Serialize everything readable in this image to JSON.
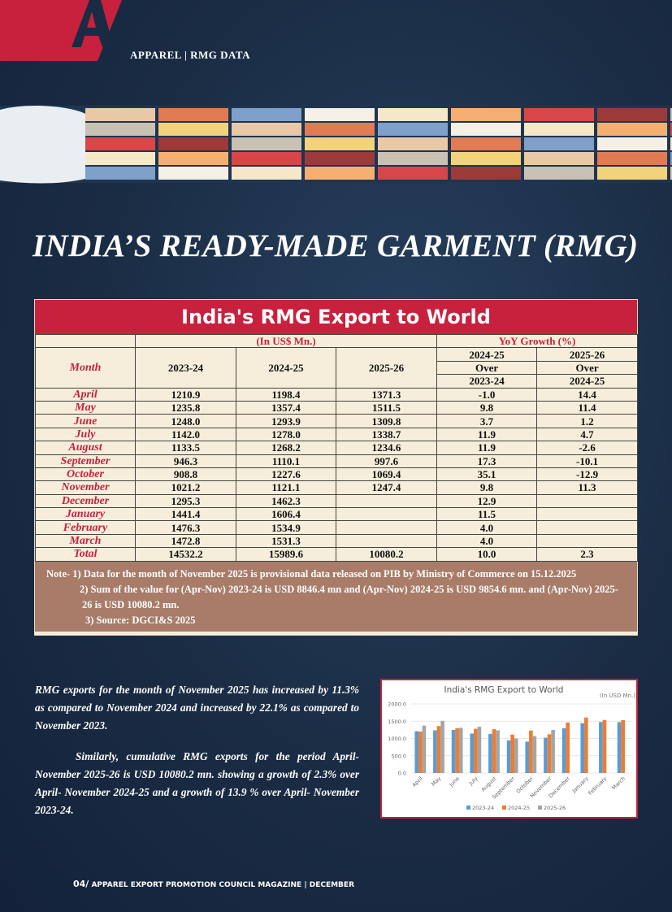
{
  "header": {
    "section": "APPAREL | RMG DATA"
  },
  "title": "INDIA’S READY-MADE GARMENT (RMG)",
  "table": {
    "title": "India's RMG Export to World",
    "unit_header": "(In US$ Mn.)",
    "growth_header": "YoY Growth (%)",
    "columns": [
      "Month",
      "2023-24",
      "2024-25",
      "2025-26"
    ],
    "growth_columns": [
      [
        "2024-25",
        "Over",
        "2023-24"
      ],
      [
        "2025-26",
        "Over",
        "2024-25"
      ]
    ],
    "rows": [
      [
        "April",
        "1210.9",
        "1198.4",
        "1371.3",
        "-1.0",
        "14.4"
      ],
      [
        "May",
        "1235.8",
        "1357.4",
        "1511.5",
        "9.8",
        "11.4"
      ],
      [
        "June",
        "1248.0",
        "1293.9",
        "1309.8",
        "3.7",
        "1.2"
      ],
      [
        "July",
        "1142.0",
        "1278.0",
        "1338.7",
        "11.9",
        "4.7"
      ],
      [
        "August",
        "1133.5",
        "1268.2",
        "1234.6",
        "11.9",
        "-2.6"
      ],
      [
        "September",
        "946.3",
        "1110.1",
        "997.6",
        "17.3",
        "-10.1"
      ],
      [
        "October",
        "908.8",
        "1227.6",
        "1069.4",
        "35.1",
        "-12.9"
      ],
      [
        "November",
        "1021.2",
        "1121.1",
        "1247.4",
        "9.8",
        "11.3"
      ],
      [
        "December",
        "1295.3",
        "1462.3",
        null,
        "12.9",
        null
      ],
      [
        "January",
        "1441.4",
        "1606.4",
        null,
        "11.5",
        null
      ],
      [
        "February",
        "1476.3",
        "1534.9",
        null,
        "4.0",
        null
      ],
      [
        "March",
        "1472.8",
        "1531.3",
        null,
        "4.0",
        null
      ],
      [
        "Total",
        "14532.2",
        "15989.6",
        "10080.2",
        "10.0",
        "2.3"
      ]
    ],
    "notes": [
      "Note- 1) Data for the month of November 2025 is provisional data released on PIB by Ministry of Commerce on 15.12.2025",
      "2) Sum of the value for (Apr-Nov) 2023-24 is USD 8846.4 mn and (Apr-Nov) 2024-25 is USD 9854.6 mn. and (Apr-Nov) 2025-26 is USD 10080.2 mn.",
      "3) Source: DGCI&S 2025"
    ]
  },
  "paragraphs": [
    "RMG exports for the month of November 2025 has increased by 11.3% as compared to November 2024 and increased by 22.1% as compared to November 2023.",
    "Similarly, cumulative RMG exports for the period April- November 2025-26 is USD 10080.2 mn. showing a growth of 2.3% over April- November 2024-25 and a growth of 13.9 % over April- November 2023-24."
  ],
  "chart_data": {
    "type": "bar",
    "title": "India's RMG Export to World",
    "annotation": "(In USD Mn.)",
    "categories": [
      "April",
      "May",
      "June",
      "July",
      "August",
      "September",
      "October",
      "November",
      "December",
      "January",
      "February",
      "March"
    ],
    "series": [
      {
        "name": "2023-24",
        "color": "#5b9bd5",
        "values": [
          1210.9,
          1235.8,
          1248.0,
          1142.0,
          1133.5,
          946.3,
          908.8,
          1021.2,
          1295.3,
          1441.4,
          1476.3,
          1472.8
        ]
      },
      {
        "name": "2024-25",
        "color": "#ed7d31",
        "values": [
          1198.4,
          1357.4,
          1293.9,
          1278.0,
          1268.2,
          1110.1,
          1227.6,
          1121.1,
          1462.3,
          1606.4,
          1534.9,
          1531.3
        ]
      },
      {
        "name": "2025-26",
        "color": "#a5a5a5",
        "values": [
          1371.3,
          1511.5,
          1309.8,
          1338.7,
          1234.6,
          997.6,
          1069.4,
          1247.4,
          null,
          null,
          null,
          null
        ]
      }
    ],
    "ylim": [
      0,
      2000
    ],
    "yticks": [
      {
        "value": 0,
        "label": "0.0"
      },
      {
        "value": 500,
        "label": "500.0"
      },
      {
        "value": 1000,
        "label": "1000.0"
      },
      {
        "value": 1500,
        "label": "1500.0"
      },
      {
        "value": 2000,
        "label": "2000.0"
      }
    ],
    "grid": true,
    "legend": "bottom"
  },
  "footer": {
    "page": "04/",
    "text": "APPAREL EXPORT PROMOTION COUNCIL MAGAZINE | DECEMBER"
  }
}
